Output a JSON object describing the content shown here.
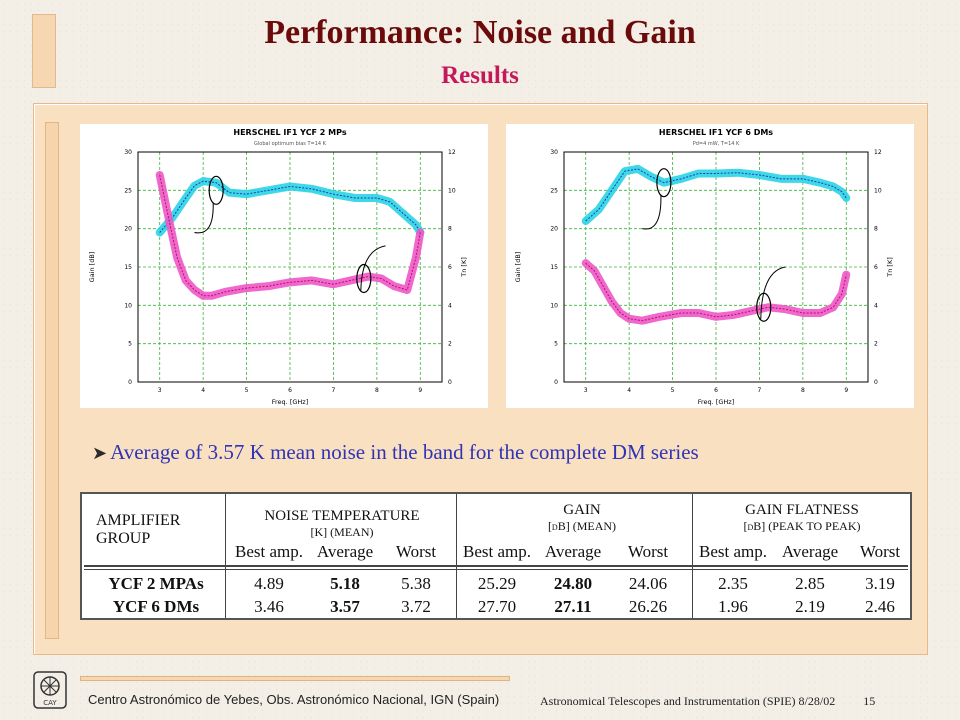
{
  "slide": {
    "title": "Performance: Noise and Gain",
    "subtitle": "Results",
    "bullet": "Average of  3.57 K mean noise in the band for the complete DM series"
  },
  "charts": [
    {
      "title": "HERSCHEL IF1 YCF 2 MPs",
      "note": "Global optimum bias T=14 K",
      "xlabel": "Freq. [GHz]",
      "ylabel": "Gain [dB]",
      "y2label": "Tn [K]",
      "xticks": [
        "3",
        "4",
        "5",
        "6",
        "7",
        "8",
        "9"
      ],
      "yticks": [
        "0",
        "5",
        "10",
        "15",
        "20",
        "25",
        "30"
      ],
      "y2ticks": [
        "0",
        "2",
        "4",
        "6",
        "8",
        "10",
        "12"
      ]
    },
    {
      "title": "HERSCHEL IF1 YCF 6 DMs",
      "note": "Pd=4 mW, T=14 K",
      "xlabel": "Freq. [GHz]",
      "ylabel": "Gain [dB]",
      "y2label": "Tn [K]",
      "xticks": [
        "3",
        "4",
        "5",
        "6",
        "7",
        "8",
        "9"
      ],
      "yticks": [
        "0",
        "5",
        "10",
        "15",
        "20",
        "25",
        "30"
      ],
      "y2ticks": [
        "0",
        "2",
        "4",
        "6",
        "8",
        "10",
        "12"
      ]
    }
  ],
  "chart_data": [
    {
      "type": "line",
      "title": "HERSCHEL IF1 YCF 2 MPs",
      "xlabel": "Freq. [GHz]",
      "ylabel": "Gain [dB]",
      "y2label": "Tn [K]",
      "xlim": [
        2.5,
        9.5
      ],
      "ylim": [
        0,
        30
      ],
      "y2lim": [
        0,
        12
      ],
      "series": [
        {
          "axis": "left",
          "color": "#2ad4e6",
          "x": [
            3.0,
            3.3,
            3.6,
            3.8,
            4.0,
            4.3,
            4.6,
            5.0,
            5.5,
            6.0,
            6.5,
            7.0,
            7.5,
            8.0,
            8.3,
            8.6,
            8.9,
            9.0
          ],
          "y": [
            19.5,
            21.5,
            24.0,
            25.6,
            26.2,
            26.0,
            24.7,
            24.5,
            25.0,
            25.5,
            25.2,
            24.5,
            24.0,
            24.0,
            23.5,
            22.0,
            20.5,
            19.5
          ]
        },
        {
          "axis": "right",
          "color": "#ee58c8",
          "x": [
            3.0,
            3.2,
            3.4,
            3.6,
            3.8,
            4.0,
            4.2,
            4.5,
            5.0,
            5.5,
            6.0,
            6.5,
            7.0,
            7.4,
            7.8,
            8.1,
            8.4,
            8.7,
            8.9,
            9.0
          ],
          "y": [
            10.8,
            8.6,
            6.5,
            5.3,
            4.8,
            4.5,
            4.5,
            4.7,
            4.9,
            5.0,
            5.2,
            5.3,
            5.1,
            5.3,
            5.5,
            5.4,
            5.0,
            4.8,
            6.5,
            7.8
          ]
        }
      ]
    },
    {
      "type": "line",
      "title": "HERSCHEL IF1 YCF 6 DMs",
      "xlabel": "Freq. [GHz]",
      "ylabel": "Gain [dB]",
      "y2label": "Tn [K]",
      "xlim": [
        2.5,
        9.5
      ],
      "ylim": [
        0,
        30
      ],
      "y2lim": [
        0,
        12
      ],
      "series": [
        {
          "axis": "left",
          "color": "#2ad4e6",
          "x": [
            3.0,
            3.3,
            3.6,
            3.9,
            4.2,
            4.5,
            4.8,
            5.2,
            5.6,
            6.0,
            6.5,
            7.0,
            7.5,
            8.0,
            8.4,
            8.7,
            8.9,
            9.0
          ],
          "y": [
            21.0,
            22.5,
            25.0,
            27.5,
            27.8,
            26.8,
            26.0,
            26.5,
            27.2,
            27.2,
            27.3,
            27.0,
            26.5,
            26.5,
            26.0,
            25.5,
            24.8,
            24.0
          ]
        },
        {
          "axis": "right",
          "color": "#ee58c8",
          "x": [
            3.0,
            3.2,
            3.4,
            3.6,
            3.8,
            4.0,
            4.3,
            4.7,
            5.2,
            5.6,
            6.0,
            6.4,
            6.8,
            7.2,
            7.6,
            8.0,
            8.4,
            8.7,
            8.9,
            9.0
          ],
          "y": [
            6.2,
            5.8,
            5.0,
            4.2,
            3.6,
            3.3,
            3.2,
            3.4,
            3.6,
            3.6,
            3.4,
            3.5,
            3.7,
            3.9,
            3.8,
            3.6,
            3.6,
            3.9,
            4.6,
            5.6
          ]
        }
      ]
    }
  ],
  "table": {
    "headers": {
      "group": [
        "AMPLIFIER",
        "GROUP"
      ],
      "noise": [
        "NOISE TEMPERATURE",
        "[K] (MEAN)"
      ],
      "gain": [
        "GAIN",
        "[dB] (MEAN)"
      ],
      "flat": [
        "GAIN FLATNESS",
        "[dB] (PEAK TO PEAK)"
      ],
      "cols": [
        "Best amp.",
        "Average",
        "Worst",
        "Best amp.",
        "Average",
        "Worst",
        "Best amp.",
        "Average",
        "Worst"
      ]
    },
    "rows": [
      {
        "name": "YCF 2 MPAs",
        "values": [
          "4.89",
          "5.18",
          "5.38",
          "25.29",
          "24.80",
          "24.06",
          "2.35",
          "2.85",
          "3.19"
        ]
      },
      {
        "name": "YCF 6 DMs",
        "values": [
          "3.46",
          "3.57",
          "3.72",
          "27.70",
          "27.11",
          "26.26",
          "1.96",
          "2.19",
          "2.46"
        ]
      }
    ]
  },
  "footer": {
    "left": "Centro Astronómico de Yebes, Obs. Astronómico Nacional, IGN (Spain)",
    "right": "Astronomical Telescopes and Instrumentation (SPIE)  8/28/02",
    "page": "15",
    "logo_text": "CAY"
  }
}
